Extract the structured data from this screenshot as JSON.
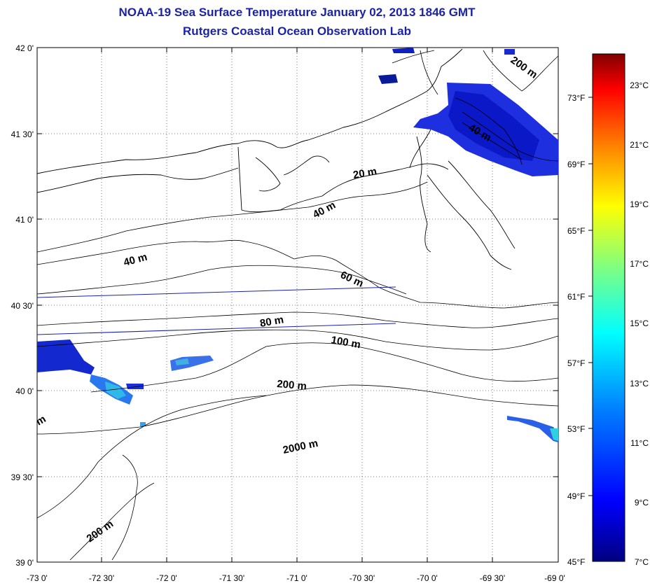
{
  "title": "NOAA-19 Sea Surface Temperature January 02, 2013 1846 GMT",
  "subtitle": "Rutgers Coastal Ocean Observation Lab",
  "map": {
    "lat_labels": [
      "42 0'",
      "41 30'",
      "41 0'",
      "40 30'",
      "40 0'",
      "39 30'",
      "39 0'"
    ],
    "lon_labels": [
      "-73 0'",
      "-72 30'",
      "-72 0'",
      "-71 30'",
      "-71 0'",
      "-70 30'",
      "-70 0'",
      "-69 30'",
      "-69 0'"
    ],
    "contour_labels": [
      "200 m",
      "40 m",
      "20 m",
      "40 m",
      "40 m",
      "60 m",
      "80 m",
      "100 m",
      "200 m",
      "2000 m",
      "200 m",
      "m"
    ]
  },
  "colorbar": {
    "celsius_labels": [
      "23°C",
      "21°C",
      "19°C",
      "17°C",
      "15°C",
      "13°C",
      "11°C",
      "9°C",
      "7°C"
    ],
    "fahrenheit_labels": [
      "73°F",
      "69°F",
      "65°F",
      "61°F",
      "57°F",
      "53°F",
      "49°F",
      "45°F"
    ],
    "colors": [
      "#800000",
      "#ff0000",
      "#ff8000",
      "#ffff00",
      "#80ff80",
      "#00ffff",
      "#0080ff",
      "#0000ff",
      "#000080"
    ]
  }
}
